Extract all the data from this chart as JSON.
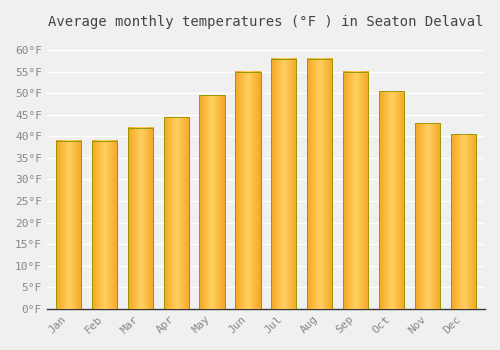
{
  "title": "Average monthly temperatures (°F ) in Seaton Delaval",
  "months": [
    "Jan",
    "Feb",
    "Mar",
    "Apr",
    "May",
    "Jun",
    "Jul",
    "Aug",
    "Sep",
    "Oct",
    "Nov",
    "Dec"
  ],
  "values": [
    39,
    39,
    42,
    44.5,
    49.5,
    55,
    58,
    58,
    55,
    50.5,
    43,
    40.5
  ],
  "bar_color_left": "#F5A623",
  "bar_color_center": "#FFD060",
  "bar_color_right": "#F5A623",
  "bar_edge_color": "#888800",
  "ylim": [
    0,
    63
  ],
  "yticks": [
    0,
    5,
    10,
    15,
    20,
    25,
    30,
    35,
    40,
    45,
    50,
    55,
    60
  ],
  "ytick_labels": [
    "0°F",
    "5°F",
    "10°F",
    "15°F",
    "20°F",
    "25°F",
    "30°F",
    "35°F",
    "40°F",
    "45°F",
    "50°F",
    "55°F",
    "60°F"
  ],
  "bg_color": "#f0f0f0",
  "grid_color": "#ffffff",
  "title_fontsize": 10,
  "tick_fontsize": 8,
  "label_color": "#888888"
}
